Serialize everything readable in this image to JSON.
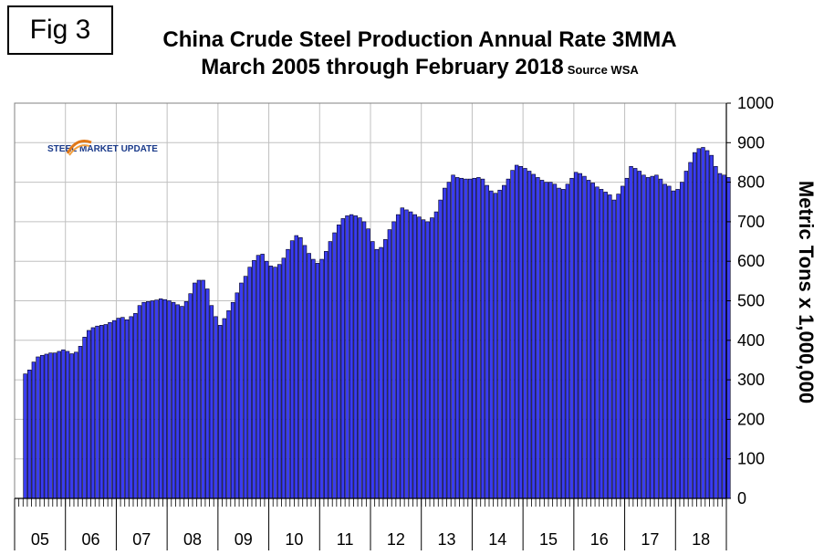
{
  "figure_label": "Fig 3",
  "logo": {
    "part1": "STEEL",
    "part2": "MARKET UPDATE"
  },
  "chart_data": {
    "type": "bar",
    "title": "China Crude Steel Production Annual Rate 3MMA",
    "subtitle": "March 2005 through February 2018",
    "source": "Source WSA",
    "ylabel": "Metric Tons x 1,000,000",
    "xlabel": "",
    "ylim": [
      0,
      1000
    ],
    "yticks": [
      0,
      100,
      200,
      300,
      400,
      500,
      600,
      700,
      800,
      900,
      1000
    ],
    "y_axis_side": "right",
    "grid": true,
    "bar_color": "#3a3cf0",
    "x_period_labels": [
      "05",
      "06",
      "07",
      "08",
      "09",
      "10",
      "11",
      "12",
      "13",
      "14",
      "15",
      "16",
      "17",
      "18"
    ],
    "first_month": "2005-03",
    "values": [
      315,
      325,
      345,
      358,
      362,
      365,
      368,
      368,
      372,
      376,
      372,
      366,
      370,
      385,
      408,
      425,
      432,
      436,
      438,
      440,
      445,
      450,
      456,
      458,
      452,
      460,
      468,
      488,
      496,
      498,
      500,
      502,
      505,
      503,
      500,
      496,
      490,
      486,
      498,
      518,
      545,
      552,
      552,
      530,
      488,
      460,
      438,
      455,
      475,
      496,
      520,
      545,
      562,
      585,
      602,
      615,
      618,
      600,
      588,
      585,
      592,
      608,
      630,
      652,
      665,
      660,
      640,
      620,
      605,
      595,
      605,
      625,
      650,
      672,
      692,
      708,
      715,
      718,
      715,
      710,
      700,
      682,
      650,
      630,
      635,
      655,
      680,
      700,
      718,
      735,
      730,
      725,
      718,
      712,
      705,
      700,
      710,
      725,
      755,
      785,
      800,
      818,
      812,
      810,
      808,
      808,
      810,
      812,
      808,
      792,
      778,
      772,
      780,
      792,
      808,
      830,
      843,
      840,
      835,
      828,
      820,
      812,
      805,
      800,
      800,
      795,
      785,
      782,
      795,
      810,
      825,
      822,
      815,
      805,
      798,
      788,
      782,
      775,
      768,
      755,
      770,
      790,
      810,
      840,
      835,
      828,
      818,
      812,
      815,
      818,
      808,
      795,
      790,
      778,
      782,
      800,
      828,
      850,
      875,
      885,
      888,
      880,
      868,
      840,
      822,
      818,
      812
    ]
  }
}
